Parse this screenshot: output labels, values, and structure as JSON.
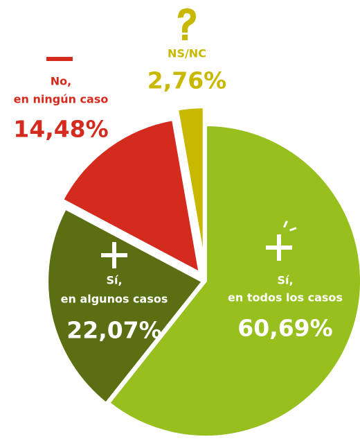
{
  "chart_data": {
    "type": "pie",
    "categories": [
      [
        "Sí,",
        "en todos los casos"
      ],
      [
        "Sí,",
        "en algunos casos"
      ],
      [
        "No,",
        "en ningún caso"
      ],
      [
        "NS/NC"
      ]
    ],
    "values": [
      60.69,
      22.07,
      14.48,
      2.76
    ],
    "value_labels": [
      "60,69%",
      "22,07%",
      "14,48%",
      "2,76%"
    ],
    "colors": [
      "#97bf1e",
      "#5a6e12",
      "#d52b1e",
      "#c9b800"
    ]
  }
}
